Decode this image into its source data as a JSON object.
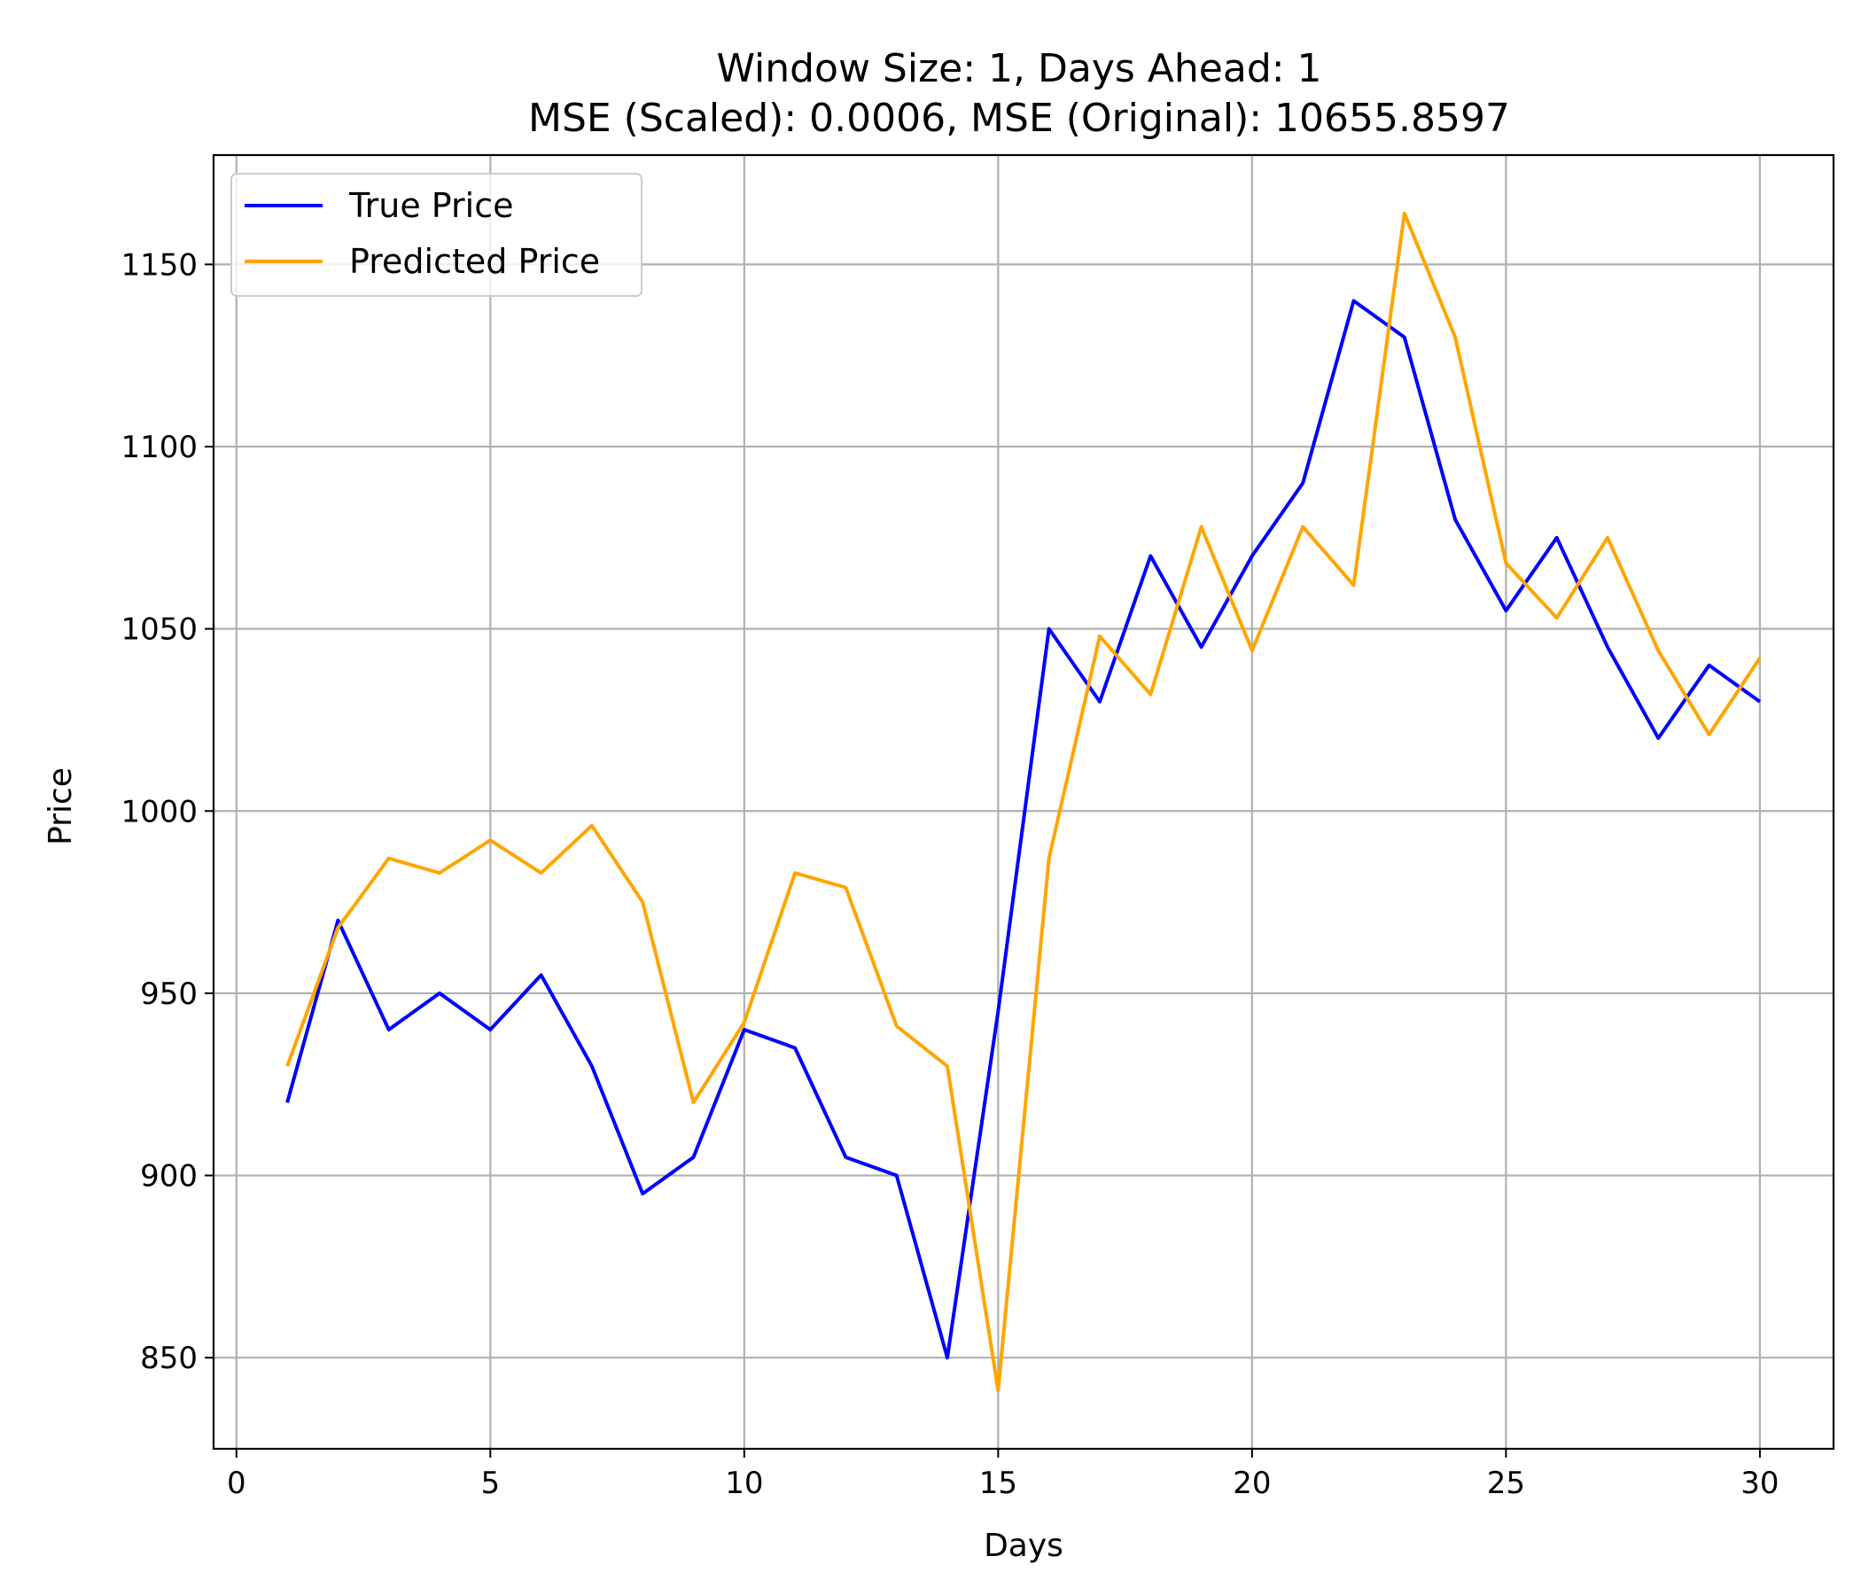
{
  "chart_data": {
    "type": "line",
    "title": "Window Size: 1, Days Ahead: 1",
    "subtitle": "MSE (Scaled): 0.0006, MSE (Original): 10655.8597",
    "xlabel": "Days",
    "ylabel": "Price",
    "xlim": [
      -0.45,
      31.45
    ],
    "ylim": [
      825,
      1180
    ],
    "xticks": [
      0,
      5,
      10,
      15,
      20,
      25,
      30
    ],
    "yticks": [
      850,
      900,
      950,
      1000,
      1050,
      1100,
      1150
    ],
    "grid": true,
    "legend_position": "top-left",
    "x": [
      1,
      2,
      3,
      4,
      5,
      6,
      7,
      8,
      9,
      10,
      11,
      12,
      13,
      14,
      15,
      16,
      17,
      18,
      19,
      20,
      21,
      22,
      23,
      24,
      25,
      26,
      27,
      28,
      29,
      30
    ],
    "series": [
      {
        "name": "True Price",
        "color": "#0000ff",
        "values": [
          920,
          970,
          940,
          950,
          940,
          955,
          930,
          895,
          905,
          940,
          935,
          905,
          900,
          850,
          945,
          1050,
          1030,
          1070,
          1045,
          1070,
          1090,
          1140,
          1130,
          1080,
          1055,
          1075,
          1045,
          1020,
          1040,
          1030
        ]
      },
      {
        "name": "Predicted Price",
        "color": "#ffa500",
        "values": [
          930,
          968,
          987,
          983,
          992,
          983,
          996,
          975,
          920,
          942,
          983,
          979,
          941,
          930,
          841,
          987,
          1048,
          1032,
          1078,
          1044,
          1078,
          1062,
          1164,
          1130,
          1068,
          1053,
          1075,
          1044,
          1021,
          1042
        ]
      }
    ]
  }
}
